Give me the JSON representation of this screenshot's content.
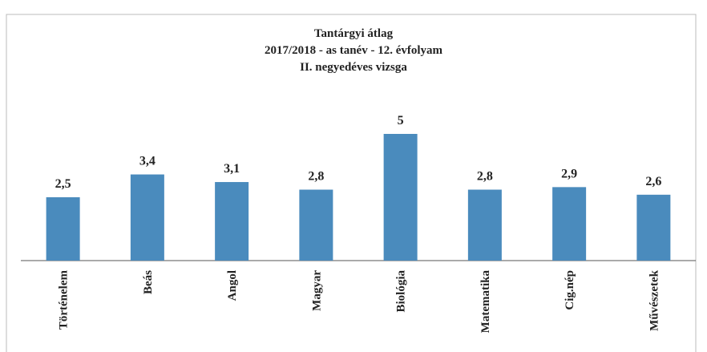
{
  "chart_data": {
    "type": "bar",
    "title": [
      "Tantárgyi átlag",
      "2017/2018 - as tanév - 12. évfolyam",
      "II. negyedéves vizsga"
    ],
    "categories": [
      "Történelem",
      "Beás",
      "Angol",
      "Magyar",
      "Biológia",
      "Matematika",
      "Cig.nép",
      "Művészetek"
    ],
    "values": [
      2.5,
      3.4,
      3.1,
      2.8,
      5,
      2.8,
      2.9,
      2.6
    ],
    "value_labels": [
      "2,5",
      "3,4",
      "3,1",
      "2,8",
      "5",
      "2,8",
      "2,9",
      "2,6"
    ],
    "color": "#4a8bbd",
    "ylim": [
      0,
      5
    ]
  }
}
